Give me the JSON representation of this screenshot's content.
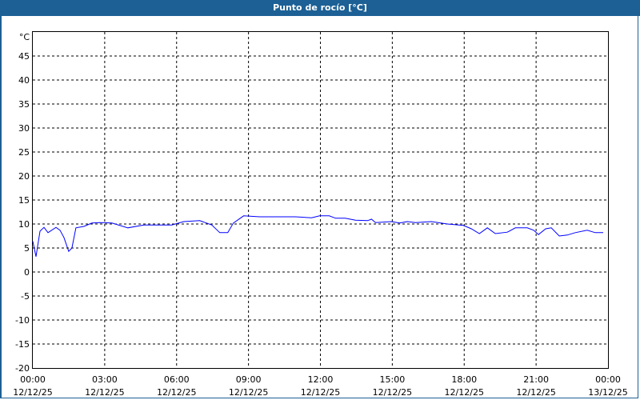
{
  "window": {
    "title": "Punto de rocío [°C]"
  },
  "chart_data": {
    "type": "line",
    "title": "Punto de rocío [°C]",
    "ylabel": "°C",
    "xlabel": "",
    "ylim": [
      -20,
      50
    ],
    "yticks": [
      -20,
      -15,
      -10,
      -5,
      0,
      5,
      10,
      15,
      20,
      25,
      30,
      35,
      40,
      45
    ],
    "xticks": [
      {
        "time": "00:00",
        "date": "12/12/25"
      },
      {
        "time": "03:00",
        "date": "12/12/25"
      },
      {
        "time": "06:00",
        "date": "12/12/25"
      },
      {
        "time": "09:00",
        "date": "12/12/25"
      },
      {
        "time": "12:00",
        "date": "12/12/25"
      },
      {
        "time": "15:00",
        "date": "12/12/25"
      },
      {
        "time": "18:00",
        "date": "12/12/25"
      },
      {
        "time": "21:00",
        "date": "12/12/25"
      },
      {
        "time": "00:00",
        "date": "13/12/25"
      }
    ],
    "xlim": [
      "12/12/25 00:00",
      "13/12/25 00:00"
    ],
    "grid": true,
    "line_color": "#0000ff",
    "series": [
      {
        "x": [
          "00:00",
          "00:08",
          "00:18",
          "00:28",
          "00:38",
          "00:58",
          "01:08",
          "01:18",
          "01:30",
          "01:38",
          "01:48",
          "02:08",
          "02:28",
          "02:48",
          "03:18",
          "03:58",
          "04:38",
          "05:18",
          "05:48",
          "06:18",
          "06:58",
          "07:28",
          "07:48",
          "08:08",
          "08:22",
          "08:48",
          "09:28",
          "10:18",
          "10:58",
          "11:38",
          "11:58",
          "12:22",
          "12:38",
          "13:02",
          "13:28",
          "13:58",
          "14:08",
          "14:18",
          "14:58",
          "15:18",
          "15:38",
          "15:58",
          "16:38",
          "17:18",
          "17:58",
          "18:18",
          "18:38",
          "18:58",
          "19:18",
          "19:48",
          "20:08",
          "20:38",
          "20:54",
          "21:06",
          "21:24",
          "21:38",
          "21:58",
          "22:18",
          "22:38",
          "23:08",
          "23:28",
          "23:48"
        ],
        "y": [
          6.4,
          3.2,
          8.5,
          9.3,
          8.2,
          9.3,
          8.7,
          7.2,
          4.3,
          5.0,
          9.2,
          9.5,
          10.2,
          10.3,
          10.2,
          9.2,
          9.8,
          9.8,
          9.8,
          10.5,
          10.7,
          9.8,
          8.2,
          8.2,
          10.2,
          11.7,
          11.5,
          11.5,
          11.5,
          11.3,
          11.7,
          11.7,
          11.2,
          11.2,
          10.8,
          10.7,
          11.0,
          10.3,
          10.5,
          10.2,
          10.5,
          10.3,
          10.5,
          10.0,
          9.7,
          9.0,
          8.0,
          9.2,
          8.0,
          8.3,
          9.2,
          9.2,
          8.7,
          7.8,
          9.0,
          9.2,
          7.5,
          7.7,
          8.2,
          8.7,
          8.2,
          8.2
        ]
      }
    ]
  }
}
